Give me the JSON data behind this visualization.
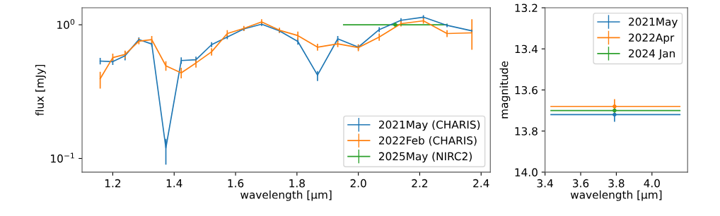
{
  "chart_data": [
    {
      "type": "line",
      "xlabel": "wavelength [μm]",
      "ylabel": "flux [mJy]",
      "log": "y",
      "xlim": [
        1.1,
        2.43
      ],
      "ylim": [
        0.079,
        1.34
      ],
      "xticks": [
        1.2,
        1.4,
        1.6,
        1.8,
        {
          "value": 2,
          "label": "2.0"
        },
        2.2,
        2.4
      ],
      "yticks": [
        {
          "value": 1,
          "label": "10$^{0}$"
        },
        {
          "value": 0.1,
          "label": "10$^{−1}$"
        }
      ],
      "legend": "lower right",
      "grid": false,
      "x": [
        1.159,
        1.2,
        1.24,
        1.285,
        1.327,
        1.373,
        1.423,
        1.471,
        1.522,
        1.573,
        1.627,
        1.685,
        1.743,
        1.803,
        1.867,
        1.933,
        2.0,
        2.068,
        2.139,
        2.212,
        2.289,
        2.37
      ],
      "series": [
        {
          "name": "2021May (CHARIS)",
          "color": "#1f77b4",
          "values": [
            0.535,
            0.53,
            0.587,
            0.775,
            0.718,
            0.12,
            0.54,
            0.548,
            0.71,
            0.81,
            0.93,
            1.01,
            0.9,
            0.75,
            0.42,
            0.785,
            0.68,
            0.92,
            1.08,
            1.14,
            0.99,
            0.9
          ],
          "errors": [
            0.03,
            0.03,
            0.045,
            0.03,
            0.03,
            [
              0.09,
              0.14
            ],
            0.03,
            0.03,
            0.03,
            0.03,
            0.03,
            0.03,
            0.03,
            0.04,
            [
              0.38,
              0.45
            ],
            0.04,
            0.03,
            0.04,
            0.04,
            0.04,
            0.03,
            0.03
          ]
        },
        {
          "name": "2022Feb (CHARIS)",
          "color": "#ff7f0e",
          "values": [
            0.395,
            0.568,
            0.6,
            0.754,
            0.775,
            0.493,
            0.437,
            0.518,
            0.628,
            0.86,
            0.94,
            1.05,
            0.91,
            0.83,
            0.68,
            0.72,
            0.675,
            0.81,
            1.02,
            1.07,
            0.86,
            0.87
          ],
          "errors": [
            [
              0.333,
              0.445
            ],
            0.04,
            0.04,
            0.04,
            0.05,
            0.04,
            0.04,
            0.04,
            0.04,
            0.05,
            0.04,
            0.05,
            0.04,
            0.06,
            0.04,
            0.04,
            0.04,
            0.05,
            0.05,
            0.05,
            0.05,
            [
              0.65,
              1.1
            ]
          ]
        },
        {
          "name": "2025May (NIRC2)",
          "color": "#2ca02c",
          "marker": "circle",
          "x": [
            2.12
          ],
          "values": [
            1.0
          ],
          "errors": [
            0.02
          ],
          "xerrors": [
            [
              1.95,
              2.29
            ]
          ]
        }
      ]
    },
    {
      "type": "line",
      "xlabel": "wavelength [μm]",
      "ylabel": "magnitude",
      "marker": "circle",
      "xlim": [
        3.4,
        4.2
      ],
      "ylim": [
        14.0,
        13.2
      ],
      "xticks": [
        3.4,
        3.6,
        3.8,
        {
          "value": 4,
          "label": "4.0"
        }
      ],
      "yticks": [
        13.2,
        13.4,
        13.6,
        13.8,
        {
          "value": 14,
          "label": "14.0"
        }
      ],
      "legend": "upper right",
      "grid": false,
      "x": [
        3.79
      ],
      "series": [
        {
          "name": "2021May",
          "color": "#1f77b4",
          "values": [
            13.72
          ],
          "errors": [
            0.035
          ],
          "xerrors": [
            [
              3.43,
              4.16
            ]
          ]
        },
        {
          "name": "2022Apr",
          "color": "#ff7f0e",
          "values": [
            13.68
          ],
          "errors": [
            0.035
          ],
          "xerrors": [
            [
              3.43,
              4.16
            ]
          ]
        },
        {
          "name": "2024 Jan",
          "color": "#2ca02c",
          "values": [
            13.7
          ],
          "errors": [
            null
          ],
          "xerrors": [
            [
              3.43,
              4.16
            ]
          ]
        }
      ]
    }
  ]
}
